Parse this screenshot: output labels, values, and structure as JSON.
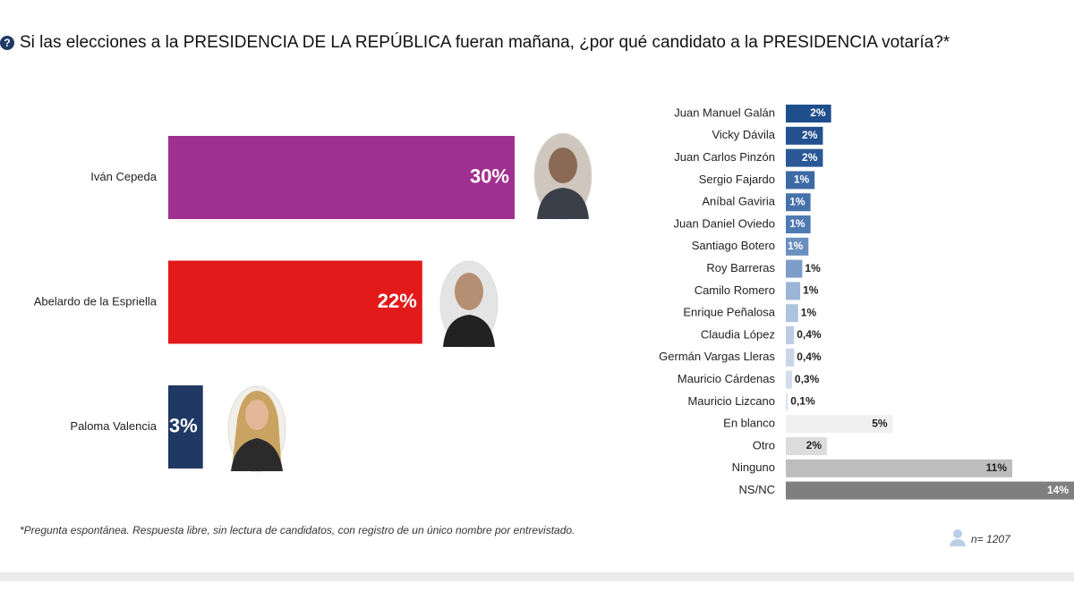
{
  "title": "Si las elecciones a la PRESIDENCIA DE LA REPÚBLICA fueran mañana, ¿por qué candidato a la PRESIDENCIA votaría?*",
  "footnote": "*Pregunta espontánea. Respuesta libre, sin lectura de candidatos, con registro de un único nombre por entrevistado.",
  "sample": "n= 1207",
  "chart_data": [
    {
      "type": "bar",
      "orientation": "horizontal",
      "categories": [
        "Iván Cepeda",
        "Abelardo de la Espriella",
        "Paloma Valencia"
      ],
      "values": [
        30,
        22,
        3
      ],
      "value_labels": [
        "30%",
        "22%",
        "3%"
      ],
      "colors": [
        "#a0308f",
        "#e21a1a",
        "#1f3864"
      ],
      "xlim": [
        0,
        30
      ]
    },
    {
      "type": "bar",
      "orientation": "horizontal",
      "categories": [
        "Juan Manuel Galán",
        "Vicky Dávila",
        "Juan Carlos Pinzón",
        "Sergio Fajardo",
        "Aníbal Gaviria",
        "Juan Daniel Oviedo",
        "Santiago Botero",
        "Roy Barreras",
        "Camilo Romero",
        "Enrique Peñalosa",
        "Claudia López",
        "Germán Vargas Lleras",
        "Mauricio Cárdenas",
        "Mauricio Lizcano",
        "En blanco",
        "Otro",
        "Ninguno",
        "NS/NC"
      ],
      "values": [
        2.2,
        1.8,
        1.8,
        1.4,
        1.2,
        1.2,
        1.1,
        0.8,
        0.7,
        0.6,
        0.4,
        0.4,
        0.3,
        0.1,
        5.2,
        2,
        11,
        14
      ],
      "value_labels": [
        "2%",
        "2%",
        "2%",
        "1%",
        "1%",
        "1%",
        "1%",
        "1%",
        "1%",
        "1%",
        "0,4%",
        "0,4%",
        "0,3%",
        "0,1%",
        "5%",
        "2%",
        "11%",
        "14%"
      ],
      "colors": [
        "#1f4e8c",
        "#24508f",
        "#2a5896",
        "#3d6aa5",
        "#4672ac",
        "#4e7ab2",
        "#6a8fc0",
        "#7d9dc9",
        "#9bb5d6",
        "#aec3de",
        "#bccde3",
        "#c8d6e8",
        "#d3deec",
        "#dde5f0",
        "#f0f0f0",
        "#dcdcdc",
        "#bdbdbd",
        "#7f7f7f"
      ],
      "xlim": [
        0,
        14
      ]
    }
  ]
}
